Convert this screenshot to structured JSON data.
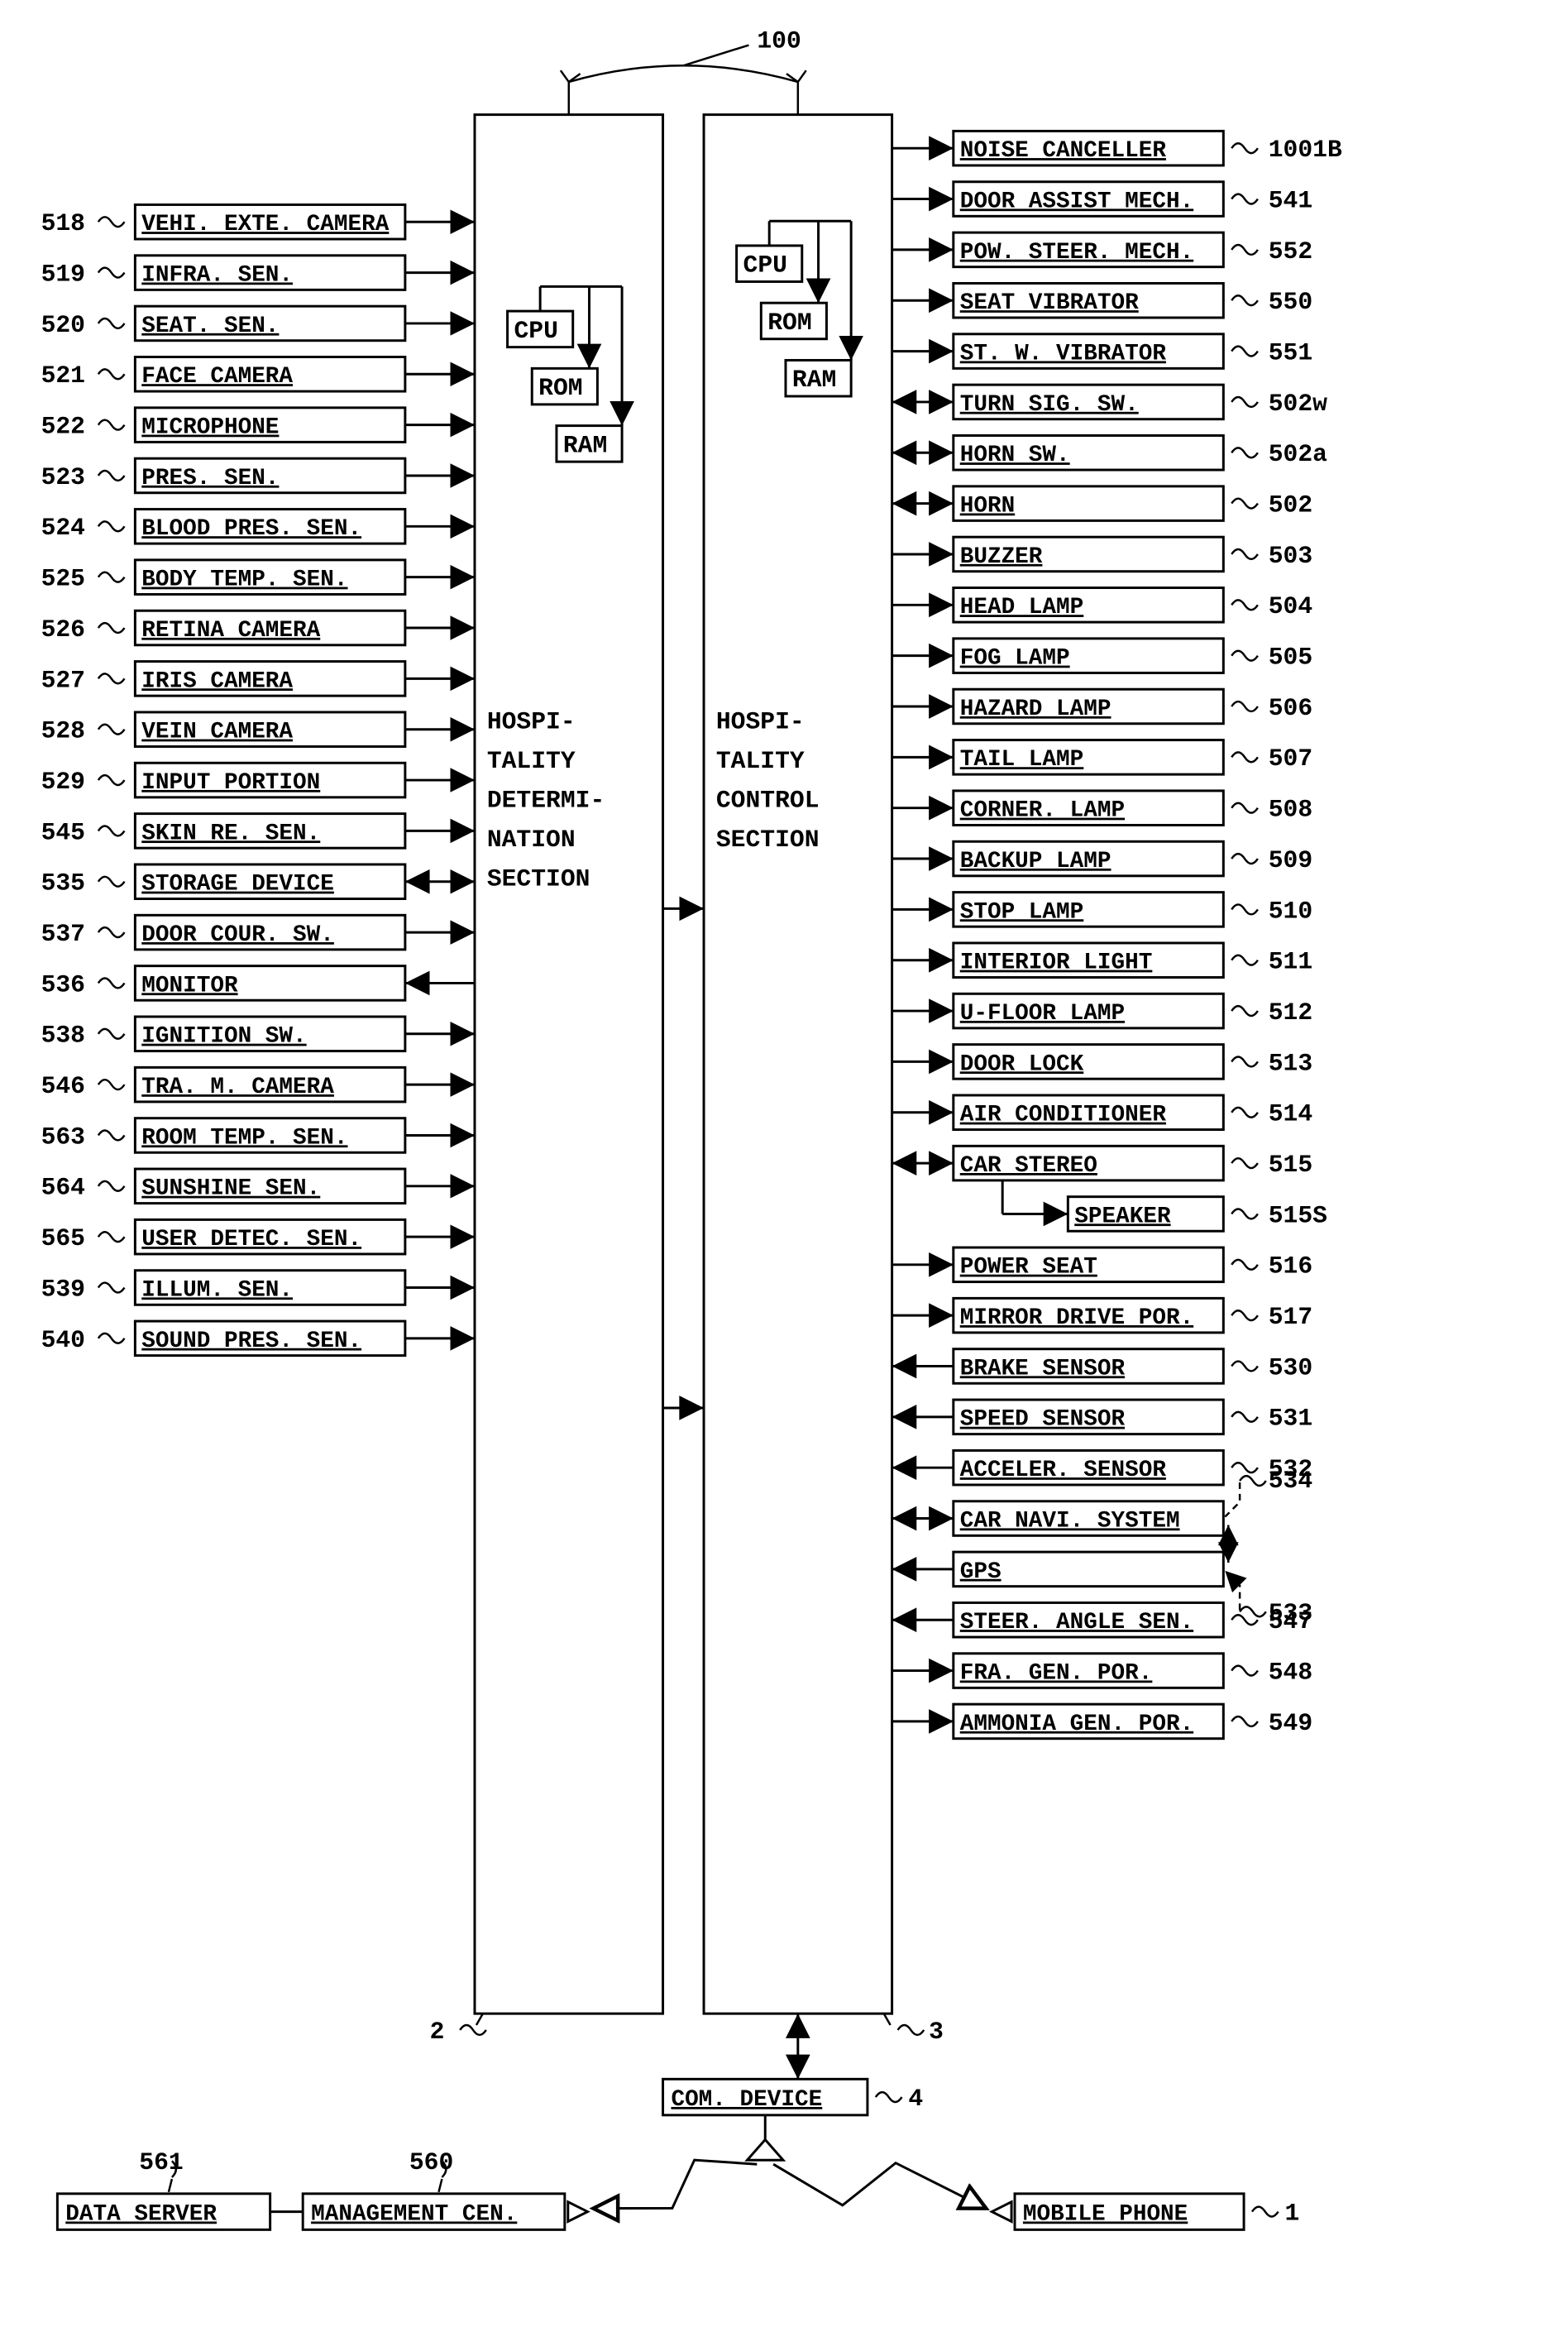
{
  "diagram": {
    "top_ref": "100",
    "section_a": {
      "title_lines": [
        "HOSPI-",
        "TALITY",
        "DETERMI-",
        "NATION",
        "SECTION"
      ],
      "cpu": "CPU",
      "rom": "ROM",
      "ram": "RAM",
      "ref": "2"
    },
    "section_b": {
      "title_lines": [
        "HOSPI-",
        "TALITY",
        "CONTROL",
        "SECTION"
      ],
      "cpu": "CPU",
      "rom": "ROM",
      "ram": "RAM",
      "ref": "3"
    },
    "left": [
      {
        "ref": "518",
        "label": "VEHI. EXTE. CAMERA",
        "dir": "right"
      },
      {
        "ref": "519",
        "label": "INFRA. SEN.",
        "dir": "right"
      },
      {
        "ref": "520",
        "label": "SEAT. SEN.",
        "dir": "right"
      },
      {
        "ref": "521",
        "label": "FACE CAMERA",
        "dir": "right"
      },
      {
        "ref": "522",
        "label": "MICROPHONE",
        "dir": "right"
      },
      {
        "ref": "523",
        "label": "PRES. SEN.",
        "dir": "right"
      },
      {
        "ref": "524",
        "label": "BLOOD PRES. SEN.",
        "dir": "right"
      },
      {
        "ref": "525",
        "label": "BODY TEMP. SEN.",
        "dir": "right"
      },
      {
        "ref": "526",
        "label": "RETINA CAMERA",
        "dir": "right"
      },
      {
        "ref": "527",
        "label": "IRIS CAMERA",
        "dir": "right"
      },
      {
        "ref": "528",
        "label": "VEIN CAMERA",
        "dir": "right"
      },
      {
        "ref": "529",
        "label": "INPUT PORTION",
        "dir": "right"
      },
      {
        "ref": "545",
        "label": "SKIN RE. SEN.",
        "dir": "right"
      },
      {
        "ref": "535",
        "label": "STORAGE DEVICE",
        "dir": "both"
      },
      {
        "ref": "537",
        "label": "DOOR COUR. SW.",
        "dir": "right"
      },
      {
        "ref": "536",
        "label": "MONITOR",
        "dir": "left"
      },
      {
        "ref": "538",
        "label": "IGNITION SW.",
        "dir": "right"
      },
      {
        "ref": "546",
        "label": "TRA. M. CAMERA",
        "dir": "right"
      },
      {
        "ref": "563",
        "label": "ROOM TEMP. SEN.",
        "dir": "right"
      },
      {
        "ref": "564",
        "label": "SUNSHINE SEN.",
        "dir": "right"
      },
      {
        "ref": "565",
        "label": "USER DETEC. SEN.",
        "dir": "right"
      },
      {
        "ref": "539",
        "label": "ILLUM. SEN.",
        "dir": "right"
      },
      {
        "ref": "540",
        "label": "SOUND PRES. SEN.",
        "dir": "right"
      }
    ],
    "right": [
      {
        "ref": "1001B",
        "label": "NOISE CANCELLER",
        "dir": "out"
      },
      {
        "ref": "541",
        "label": "DOOR ASSIST MECH.",
        "dir": "out"
      },
      {
        "ref": "552",
        "label": "POW. STEER. MECH.",
        "dir": "out"
      },
      {
        "ref": "550",
        "label": "SEAT VIBRATOR",
        "dir": "out"
      },
      {
        "ref": "551",
        "label": "ST. W. VIBRATOR",
        "dir": "out"
      },
      {
        "ref": "502w",
        "label": "TURN SIG. SW.",
        "dir": "both"
      },
      {
        "ref": "502a",
        "label": "HORN SW.",
        "dir": "both"
      },
      {
        "ref": "502",
        "label": "HORN",
        "dir": "both"
      },
      {
        "ref": "503",
        "label": "BUZZER",
        "dir": "out"
      },
      {
        "ref": "504",
        "label": "HEAD LAMP",
        "dir": "out"
      },
      {
        "ref": "505",
        "label": "FOG LAMP",
        "dir": "out"
      },
      {
        "ref": "506",
        "label": "HAZARD LAMP",
        "dir": "out"
      },
      {
        "ref": "507",
        "label": "TAIL LAMP",
        "dir": "out"
      },
      {
        "ref": "508",
        "label": "CORNER. LAMP",
        "dir": "out"
      },
      {
        "ref": "509",
        "label": "BACKUP LAMP",
        "dir": "out"
      },
      {
        "ref": "510",
        "label": "STOP LAMP",
        "dir": "out"
      },
      {
        "ref": "511",
        "label": "INTERIOR LIGHT",
        "dir": "out"
      },
      {
        "ref": "512",
        "label": "U-FLOOR LAMP",
        "dir": "out"
      },
      {
        "ref": "513",
        "label": "DOOR LOCK",
        "dir": "out"
      },
      {
        "ref": "514",
        "label": "AIR CONDITIONER",
        "dir": "out"
      },
      {
        "ref": "515",
        "label": "CAR STEREO",
        "dir": "both"
      },
      {
        "ref": "515S",
        "label": "SPEAKER",
        "dir": "speaker"
      },
      {
        "ref": "516",
        "label": "POWER SEAT",
        "dir": "out"
      },
      {
        "ref": "517",
        "label": "MIRROR DRIVE POR.",
        "dir": "out"
      },
      {
        "ref": "530",
        "label": "BRAKE SENSOR",
        "dir": "in"
      },
      {
        "ref": "531",
        "label": "SPEED SENSOR",
        "dir": "in"
      },
      {
        "ref": "532",
        "label": "ACCELER. SENSOR",
        "dir": "in"
      },
      {
        "ref": "534",
        "label": "CAR NAVI. SYSTEM",
        "dir": "both",
        "navgps": true
      },
      {
        "ref": "533",
        "label": "GPS",
        "dir": "in",
        "gps": true
      },
      {
        "ref": "547",
        "label": "STEER. ANGLE SEN.",
        "dir": "in"
      },
      {
        "ref": "548",
        "label": "FRA. GEN. POR.",
        "dir": "out"
      },
      {
        "ref": "549",
        "label": "AMMONIA GEN. POR.",
        "dir": "out"
      }
    ],
    "bottom": {
      "com_device": {
        "label": "COM. DEVICE",
        "ref": "4"
      },
      "mgmt": {
        "label": "MANAGEMENT CEN.",
        "ref": "560"
      },
      "data_server": {
        "label": "DATA SERVER",
        "ref": "561"
      },
      "mobile": {
        "label": "MOBILE PHONE",
        "ref": "1"
      }
    },
    "colors": {
      "stroke": "#000000",
      "bg": "#ffffff"
    },
    "box_dims": {
      "left_w": 300,
      "right_w": 310,
      "h": 40,
      "spacing": 62
    },
    "fontsize_label": 28,
    "fontsize_ref": 30
  }
}
